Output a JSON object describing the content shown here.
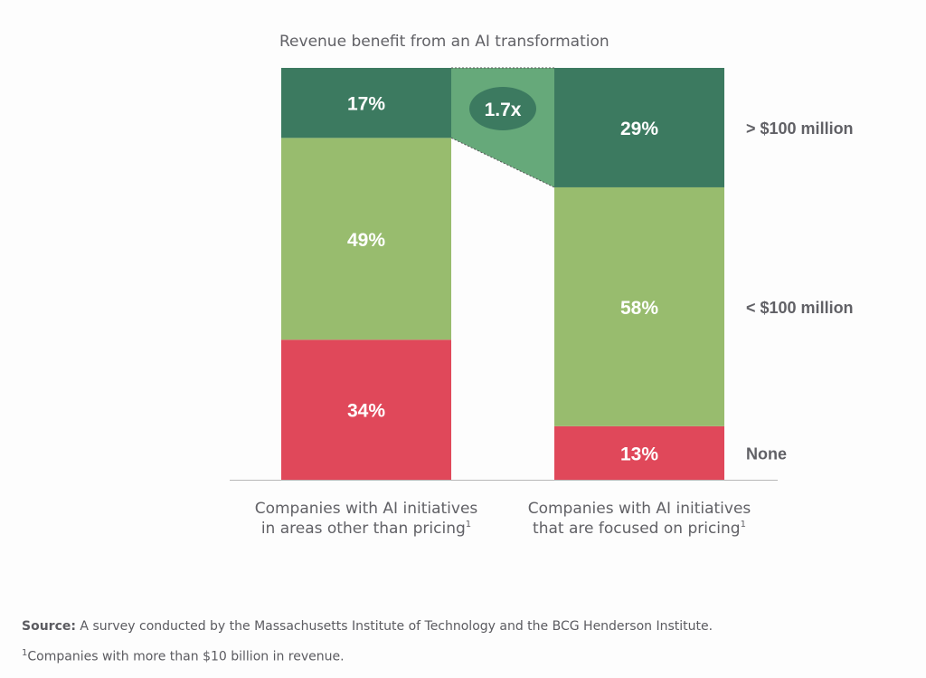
{
  "chart_data": {
    "type": "bar",
    "stacked": true,
    "title": "Revenue benefit from an AI transformation",
    "categories": [
      {
        "line1": "Companies with AI initiatives",
        "line2": "in areas other than pricing",
        "footnote_mark": "1"
      },
      {
        "line1": "Companies with AI initiatives",
        "line2": "that are focused on pricing",
        "footnote_mark": "1"
      }
    ],
    "series": [
      {
        "name": "None",
        "values": [
          34,
          13
        ],
        "labels": [
          "34%",
          "13%"
        ],
        "color": "#e0485a"
      },
      {
        "name": "< $100 million",
        "values": [
          49,
          58
        ],
        "labels": [
          "49%",
          "58%"
        ],
        "color": "#98bc6e"
      },
      {
        "name": "> $100 million",
        "values": [
          17,
          29
        ],
        "labels": [
          "17%",
          "29%"
        ],
        "color": "#3c7a60"
      }
    ],
    "ylim": [
      0,
      100
    ],
    "comparison": {
      "label": "1.7x",
      "band_color": "#66a97a",
      "badge_color": "#3c7a60"
    },
    "text_color": "#616166"
  },
  "footer": {
    "source_label": "Source:",
    "source_text": " A survey conducted by the Massachusetts Institute of Technology and the BCG Henderson Institute.",
    "footnote_mark": "1",
    "footnote_text": "Companies with more than $10 billion in revenue."
  }
}
